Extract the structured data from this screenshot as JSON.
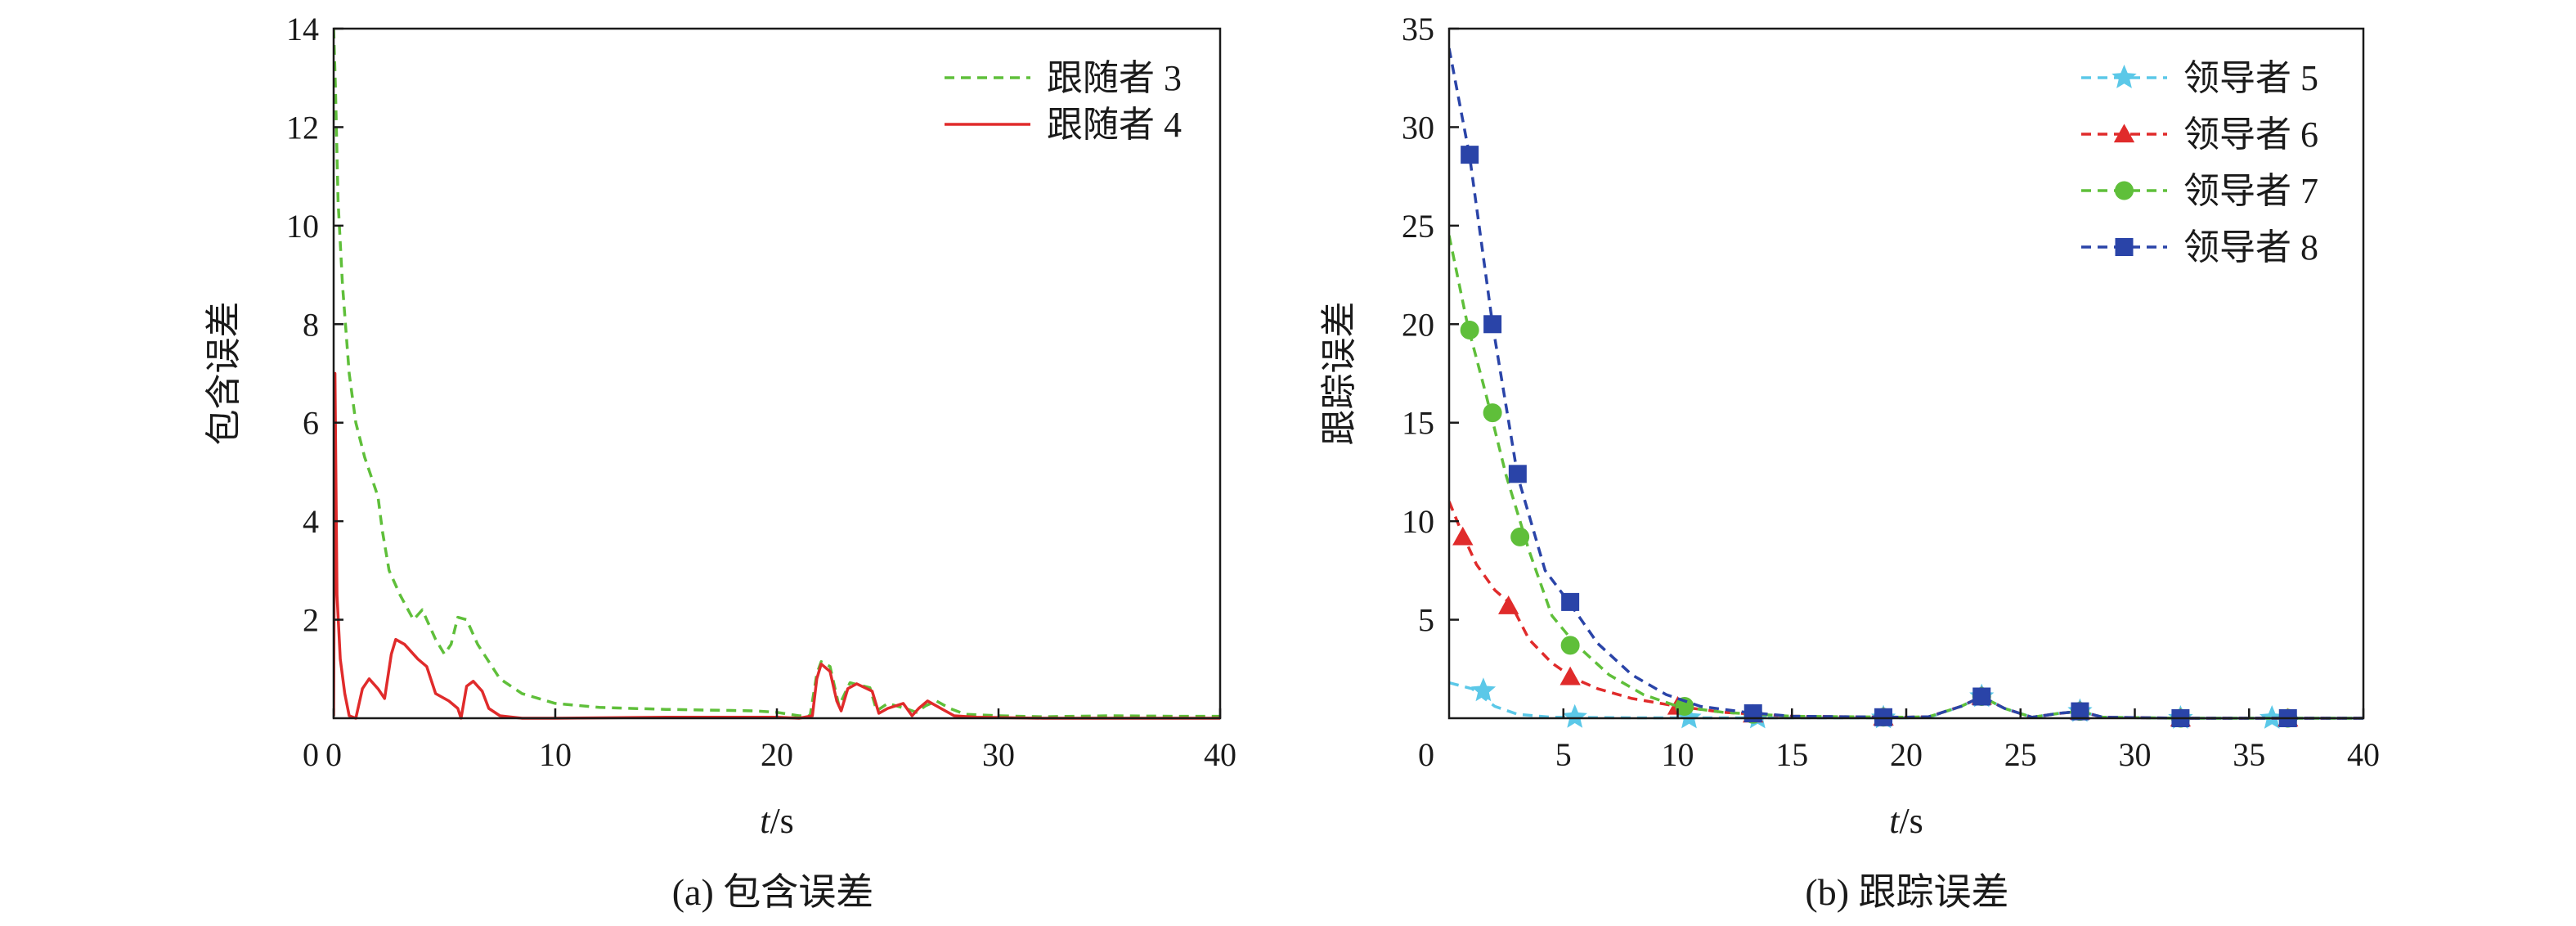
{
  "chart_data": [
    {
      "type": "line",
      "caption": "(a) 包含误差",
      "xlabel_italic": "t",
      "xlabel_unit": "/s",
      "ylabel": "包含误差",
      "xlim": [
        0,
        40
      ],
      "ylim": [
        0,
        14
      ],
      "xticks": [
        0,
        10,
        20,
        30,
        40
      ],
      "yticks": [
        2,
        4,
        6,
        8,
        10,
        12,
        14
      ],
      "y_zero_label": "0",
      "legend_position": "top-right",
      "grid": false,
      "series": [
        {
          "name": "跟随者 3",
          "color": "#5fbf3a",
          "dash": "dashed",
          "marker": "none",
          "points": [
            [
              0,
              14.0
            ],
            [
              0.08,
              12.8
            ],
            [
              0.2,
              10.5
            ],
            [
              0.4,
              8.8
            ],
            [
              0.7,
              7.0
            ],
            [
              1.0,
              6.0
            ],
            [
              1.4,
              5.3
            ],
            [
              2.0,
              4.5
            ],
            [
              2.2,
              3.8
            ],
            [
              2.5,
              3.0
            ],
            [
              3.0,
              2.5
            ],
            [
              3.6,
              2.0
            ],
            [
              4.0,
              2.2
            ],
            [
              4.6,
              1.6
            ],
            [
              5.0,
              1.3
            ],
            [
              5.3,
              1.5
            ],
            [
              5.6,
              2.05
            ],
            [
              6.0,
              2.0
            ],
            [
              6.5,
              1.5
            ],
            [
              7.5,
              0.8
            ],
            [
              8.5,
              0.5
            ],
            [
              10,
              0.3
            ],
            [
              12,
              0.22
            ],
            [
              15,
              0.18
            ],
            [
              19,
              0.15
            ],
            [
              20,
              0.12
            ],
            [
              21,
              0.05
            ],
            [
              21.5,
              0.05
            ],
            [
              21.8,
              0.9
            ],
            [
              22.0,
              1.15
            ],
            [
              22.4,
              1.05
            ],
            [
              22.8,
              0.25
            ],
            [
              23.3,
              0.72
            ],
            [
              24.2,
              0.62
            ],
            [
              24.5,
              0.15
            ],
            [
              25.0,
              0.3
            ],
            [
              25.8,
              0.2
            ],
            [
              26.3,
              0.12
            ],
            [
              26.7,
              0.25
            ],
            [
              27.2,
              0.35
            ],
            [
              27.8,
              0.2
            ],
            [
              28.5,
              0.08
            ],
            [
              30,
              0.05
            ],
            [
              32,
              0.03
            ],
            [
              35,
              0.05
            ],
            [
              38,
              0.04
            ],
            [
              40,
              0.04
            ]
          ]
        },
        {
          "name": "跟随者 4",
          "color": "#e02b2b",
          "dash": "solid",
          "marker": "none",
          "points": [
            [
              0,
              0.05
            ],
            [
              0.06,
              7.0
            ],
            [
              0.15,
              2.5
            ],
            [
              0.3,
              1.2
            ],
            [
              0.5,
              0.5
            ],
            [
              0.7,
              0.05
            ],
            [
              1.0,
              0.0
            ],
            [
              1.3,
              0.6
            ],
            [
              1.6,
              0.8
            ],
            [
              2.0,
              0.6
            ],
            [
              2.3,
              0.4
            ],
            [
              2.6,
              1.3
            ],
            [
              2.8,
              1.6
            ],
            [
              3.2,
              1.5
            ],
            [
              3.8,
              1.2
            ],
            [
              4.2,
              1.05
            ],
            [
              4.6,
              0.5
            ],
            [
              5.2,
              0.35
            ],
            [
              5.6,
              0.2
            ],
            [
              5.75,
              0.0
            ],
            [
              6.0,
              0.65
            ],
            [
              6.3,
              0.75
            ],
            [
              6.7,
              0.55
            ],
            [
              7.0,
              0.2
            ],
            [
              7.5,
              0.05
            ],
            [
              8.5,
              0.0
            ],
            [
              10,
              0.0
            ],
            [
              15,
              0.02
            ],
            [
              20,
              0.02
            ],
            [
              21,
              0.0
            ],
            [
              21.6,
              0.05
            ],
            [
              21.8,
              0.8
            ],
            [
              22.0,
              1.1
            ],
            [
              22.4,
              0.95
            ],
            [
              22.7,
              0.35
            ],
            [
              22.9,
              0.15
            ],
            [
              23.2,
              0.6
            ],
            [
              23.6,
              0.7
            ],
            [
              24.3,
              0.55
            ],
            [
              24.6,
              0.1
            ],
            [
              25.0,
              0.2
            ],
            [
              25.7,
              0.3
            ],
            [
              26.1,
              0.05
            ],
            [
              26.4,
              0.2
            ],
            [
              26.8,
              0.35
            ],
            [
              27.4,
              0.2
            ],
            [
              28,
              0.05
            ],
            [
              29,
              0.02
            ],
            [
              32,
              0.0
            ],
            [
              40,
              0.0
            ]
          ]
        }
      ]
    },
    {
      "type": "line",
      "caption": "(b) 跟踪误差",
      "xlabel_italic": "t",
      "xlabel_unit": "/s",
      "ylabel": "跟踪误差",
      "xlim": [
        0,
        40
      ],
      "ylim": [
        0,
        35
      ],
      "xticks": [
        5,
        10,
        15,
        20,
        25,
        30,
        35,
        40
      ],
      "yticks": [
        5,
        10,
        15,
        20,
        25,
        30,
        35
      ],
      "y_zero_label": "0",
      "legend_position": "top-right",
      "grid": false,
      "series": [
        {
          "name": "领导者 5",
          "color": "#5bc8e8",
          "dash": "dashed",
          "marker": "star",
          "points": [
            [
              0,
              1.8
            ],
            [
              1.0,
              1.5
            ],
            [
              2.0,
              0.6
            ],
            [
              3.0,
              0.2
            ],
            [
              4.5,
              0.05
            ],
            [
              8,
              0.02
            ],
            [
              12,
              0.02
            ],
            [
              20,
              0.02
            ],
            [
              21,
              0.05
            ],
            [
              22.4,
              0.6
            ],
            [
              23.3,
              1.1
            ],
            [
              24.3,
              0.5
            ],
            [
              25.5,
              0.05
            ],
            [
              26.7,
              0.25
            ],
            [
              27.6,
              0.35
            ],
            [
              28.6,
              0.05
            ],
            [
              32,
              0.0
            ],
            [
              36,
              0.0
            ],
            [
              40,
              0.0
            ]
          ],
          "marker_points": [
            [
              1.5,
              1.4
            ],
            [
              5.5,
              0.05
            ],
            [
              10.5,
              0.02
            ],
            [
              13.5,
              0.02
            ],
            [
              19,
              0.02
            ],
            [
              23.3,
              1.1
            ],
            [
              27.6,
              0.35
            ],
            [
              32,
              0.0
            ],
            [
              36,
              0.0
            ]
          ]
        },
        {
          "name": "领导者 6",
          "color": "#e02b2b",
          "dash": "dashed",
          "marker": "triangle",
          "points": [
            [
              0,
              11.0
            ],
            [
              0.6,
              9.3
            ],
            [
              1.2,
              7.8
            ],
            [
              2.0,
              6.5
            ],
            [
              2.7,
              5.8
            ],
            [
              3.5,
              4.0
            ],
            [
              4.5,
              2.8
            ],
            [
              5.5,
              2.0
            ],
            [
              6.5,
              1.5
            ],
            [
              8,
              1.0
            ],
            [
              10,
              0.6
            ],
            [
              12,
              0.3
            ],
            [
              15,
              0.1
            ],
            [
              20,
              0.05
            ],
            [
              21,
              0.08
            ],
            [
              22.4,
              0.6
            ],
            [
              23.3,
              1.1
            ],
            [
              24.3,
              0.5
            ],
            [
              25.5,
              0.05
            ],
            [
              26.7,
              0.25
            ],
            [
              27.6,
              0.35
            ],
            [
              28.6,
              0.05
            ],
            [
              32,
              0.0
            ],
            [
              40,
              0.0
            ]
          ],
          "marker_points": [
            [
              0.6,
              9.2
            ],
            [
              2.6,
              5.7
            ],
            [
              5.3,
              2.1
            ],
            [
              10,
              0.6
            ],
            [
              13.3,
              0.2
            ],
            [
              19,
              0.05
            ],
            [
              23.3,
              1.1
            ],
            [
              27.6,
              0.35
            ],
            [
              32,
              0.0
            ],
            [
              36.7,
              0.0
            ]
          ]
        },
        {
          "name": "领导者 7",
          "color": "#5fbf3a",
          "dash": "dashed",
          "marker": "circle",
          "points": [
            [
              0,
              24.5
            ],
            [
              0.8,
              20.0
            ],
            [
              1.6,
              16.5
            ],
            [
              2.5,
              12.3
            ],
            [
              3.5,
              8.5
            ],
            [
              4.5,
              5.2
            ],
            [
              5.5,
              3.8
            ],
            [
              7,
              2.2
            ],
            [
              8.5,
              1.2
            ],
            [
              10,
              0.6
            ],
            [
              12,
              0.3
            ],
            [
              15,
              0.1
            ],
            [
              20,
              0.05
            ],
            [
              21,
              0.08
            ],
            [
              22.4,
              0.6
            ],
            [
              23.3,
              1.1
            ],
            [
              24.3,
              0.5
            ],
            [
              25.5,
              0.05
            ],
            [
              26.7,
              0.25
            ],
            [
              27.6,
              0.35
            ],
            [
              28.6,
              0.05
            ],
            [
              32,
              0.0
            ],
            [
              40,
              0.0
            ]
          ],
          "marker_points": [
            [
              0.9,
              19.7
            ],
            [
              1.9,
              15.5
            ],
            [
              3.1,
              9.2
            ],
            [
              5.3,
              3.7
            ],
            [
              10.3,
              0.6
            ],
            [
              13.3,
              0.2
            ],
            [
              19,
              0.05
            ],
            [
              23.3,
              1.1
            ],
            [
              27.6,
              0.35
            ],
            [
              32,
              0.0
            ],
            [
              36.7,
              0.0
            ]
          ]
        },
        {
          "name": "领导者 8",
          "color": "#2a44a8",
          "dash": "dashed",
          "marker": "square",
          "points": [
            [
              0,
              34.0
            ],
            [
              0.9,
              28.5
            ],
            [
              1.9,
              20.0
            ],
            [
              3.0,
              12.3
            ],
            [
              4.2,
              7.5
            ],
            [
              5.3,
              5.8
            ],
            [
              6.5,
              3.8
            ],
            [
              8,
              2.2
            ],
            [
              9.5,
              1.2
            ],
            [
              11,
              0.6
            ],
            [
              13,
              0.3
            ],
            [
              15,
              0.1
            ],
            [
              20,
              0.05
            ],
            [
              21,
              0.08
            ],
            [
              22.4,
              0.6
            ],
            [
              23.3,
              1.1
            ],
            [
              24.3,
              0.5
            ],
            [
              25.5,
              0.05
            ],
            [
              26.7,
              0.25
            ],
            [
              27.6,
              0.35
            ],
            [
              28.6,
              0.05
            ],
            [
              32,
              0.0
            ],
            [
              40,
              0.0
            ]
          ],
          "marker_points": [
            [
              0.9,
              28.6
            ],
            [
              1.9,
              20.0
            ],
            [
              3.0,
              12.4
            ],
            [
              5.3,
              5.9
            ],
            [
              13.3,
              0.25
            ],
            [
              19,
              0.05
            ],
            [
              23.3,
              1.1
            ],
            [
              27.6,
              0.35
            ],
            [
              32,
              0.0
            ],
            [
              36.7,
              0.0
            ]
          ]
        }
      ]
    }
  ]
}
